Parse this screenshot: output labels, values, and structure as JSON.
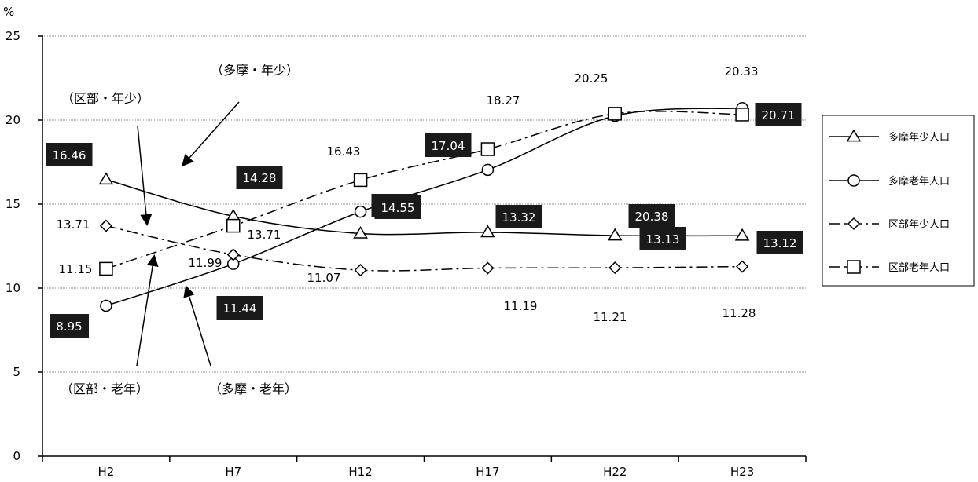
{
  "chart_data": {
    "type": "line",
    "unit_label": "%",
    "categories": [
      "H2",
      "H7",
      "H12",
      "H17",
      "H22",
      "H23"
    ],
    "ylim": [
      0,
      25
    ],
    "yticks": [
      0,
      5,
      10,
      15,
      20,
      25
    ],
    "grid": true,
    "legend_position": "right",
    "series": [
      {
        "name": "多摩年少人口",
        "marker": "triangle",
        "dash": "solid",
        "values": [
          16.46,
          14.28,
          13.25,
          13.32,
          13.13,
          13.12
        ]
      },
      {
        "name": "多摩老年人口",
        "marker": "circle",
        "dash": "solid",
        "values": [
          8.95,
          11.44,
          14.55,
          17.04,
          20.25,
          20.71
        ]
      },
      {
        "name": "区部年少人口",
        "marker": "diamond",
        "dash": "dashdot",
        "values": [
          13.71,
          11.99,
          11.07,
          11.19,
          11.21,
          11.28
        ]
      },
      {
        "name": "区部老年人口",
        "marker": "square",
        "dash": "dashdot",
        "values": [
          11.15,
          13.71,
          16.43,
          18.27,
          20.38,
          20.33
        ]
      }
    ],
    "annotations": [
      "（多摩・年少）",
      "（区部・年少）",
      "（区部・老年）",
      "（多摩・老年）"
    ]
  }
}
